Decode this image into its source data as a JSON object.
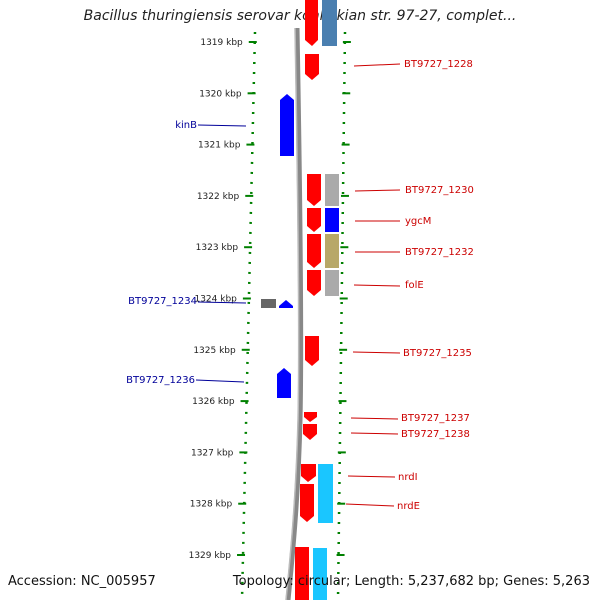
{
  "title": "Bacillus thuringiensis serovar konkukian str. 97-27, complet...",
  "footer": {
    "accession": "Accession: NC_005957",
    "topology": "Topology: circular; Length: 5,237,682 bp; Genes: 5,263"
  },
  "ticks": [
    "1319 kbp",
    "1320 kbp",
    "1321 kbp",
    "1322 kbp",
    "1323 kbp",
    "1324 kbp",
    "1325 kbp",
    "1326 kbp",
    "1327 kbp",
    "1328 kbp",
    "1329 kbp"
  ],
  "colors": {
    "red": "#ff0000",
    "blue": "#0000ff",
    "darkblue": "#000099",
    "lightblue": "#1ac6ff",
    "steelblue": "#4a7fb0",
    "gray": "#aaaaaa",
    "darkgray": "#666666",
    "olive": "#b8a868",
    "green": "#008000",
    "backbone": "#888888"
  },
  "labels_right": [
    "BT9727_1228",
    "BT9727_1230",
    "ygcM",
    "BT9727_1232",
    "folE",
    "BT9727_1235",
    "BT9727_1237",
    "BT9727_1238",
    "nrdI",
    "nrdE"
  ],
  "labels_left": [
    "kinB",
    "BT9727_1234",
    "BT9727_1236"
  ]
}
